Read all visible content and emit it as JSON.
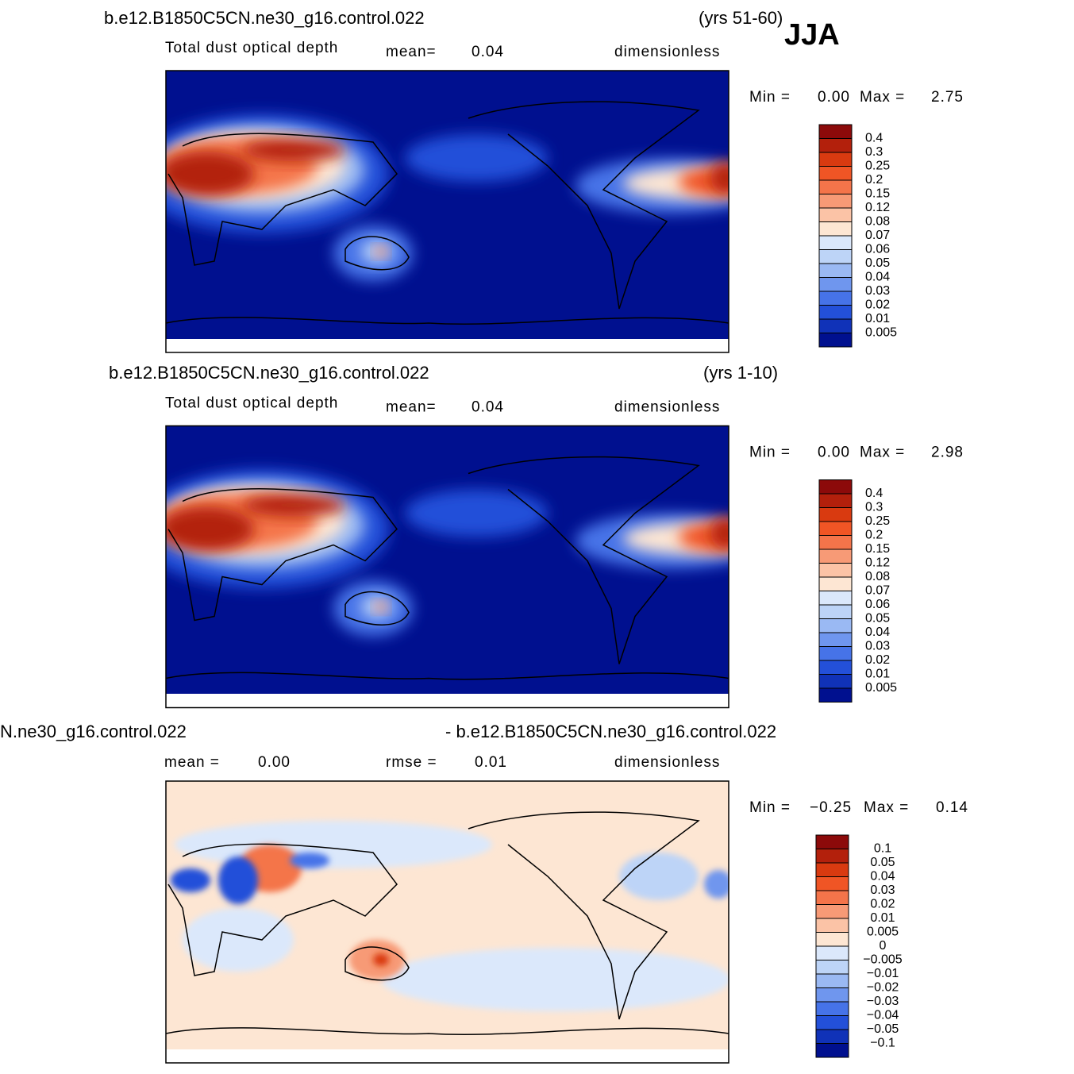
{
  "season": "JJA",
  "panels": [
    {
      "title_left": "b.e12.B1850C5CN.ne30_g16.control.022",
      "title_right": "(yrs 51-60)",
      "variable": "Total dust optical depth",
      "stats": [
        {
          "label": "mean=",
          "value": "0.04"
        }
      ],
      "units": "dimensionless",
      "min_label": "Min =",
      "min": "0.00",
      "max_label": "Max =",
      "max": "2.75",
      "colorbar": {
        "labels": [
          "0.4",
          "0.3",
          "0.25",
          "0.2",
          "0.15",
          "0.12",
          "0.08",
          "0.07",
          "0.06",
          "0.05",
          "0.04",
          "0.03",
          "0.02",
          "0.01",
          "0.005"
        ],
        "colors": [
          "#8c0a0a",
          "#b3200c",
          "#d93a10",
          "#f05525",
          "#f4744a",
          "#f79a76",
          "#fbc3a6",
          "#fde6d3",
          "#dbe8fb",
          "#bdd4f7",
          "#9ab9f3",
          "#6f96ee",
          "#4673e8",
          "#2350d9",
          "#1032b8",
          "#00108f"
        ]
      }
    },
    {
      "title_left": "b.e12.B1850C5CN.ne30_g16.control.022",
      "title_right": "(yrs 1-10)",
      "variable": "Total dust optical depth",
      "stats": [
        {
          "label": "mean=",
          "value": "0.04"
        }
      ],
      "units": "dimensionless",
      "min_label": "Min =",
      "min": "0.00",
      "max_label": "Max =",
      "max": "2.98",
      "colorbar": {
        "labels": [
          "0.4",
          "0.3",
          "0.25",
          "0.2",
          "0.15",
          "0.12",
          "0.08",
          "0.07",
          "0.06",
          "0.05",
          "0.04",
          "0.03",
          "0.02",
          "0.01",
          "0.005"
        ],
        "colors": [
          "#8c0a0a",
          "#b3200c",
          "#d93a10",
          "#f05525",
          "#f4744a",
          "#f79a76",
          "#fbc3a6",
          "#fde6d3",
          "#dbe8fb",
          "#bdd4f7",
          "#9ab9f3",
          "#6f96ee",
          "#4673e8",
          "#2350d9",
          "#1032b8",
          "#00108f"
        ]
      }
    },
    {
      "title_left": "N.ne30_g16.control.022",
      "title_right": "- b.e12.B1850C5CN.ne30_g16.control.022",
      "stats": [
        {
          "label": "mean =",
          "value": "0.00"
        },
        {
          "label": "rmse =",
          "value": "0.01"
        }
      ],
      "units": "dimensionless",
      "min_label": "Min =",
      "min": "−0.25",
      "max_label": "Max =",
      "max": "0.14",
      "colorbar": {
        "labels": [
          "0.1",
          "0.05",
          "0.04",
          "0.03",
          "0.02",
          "0.01",
          "0.005",
          "0",
          "−0.005",
          "−0.01",
          "−0.02",
          "−0.03",
          "−0.04",
          "−0.05",
          "−0.1"
        ],
        "colors": [
          "#8c0a0a",
          "#b3200c",
          "#d93a10",
          "#f05525",
          "#f4744a",
          "#f79a76",
          "#fbc3a6",
          "#fde6d3",
          "#dbe8fb",
          "#bdd4f7",
          "#9ab9f3",
          "#6f96ee",
          "#4673e8",
          "#2350d9",
          "#1032b8",
          "#00108f"
        ]
      }
    }
  ]
}
